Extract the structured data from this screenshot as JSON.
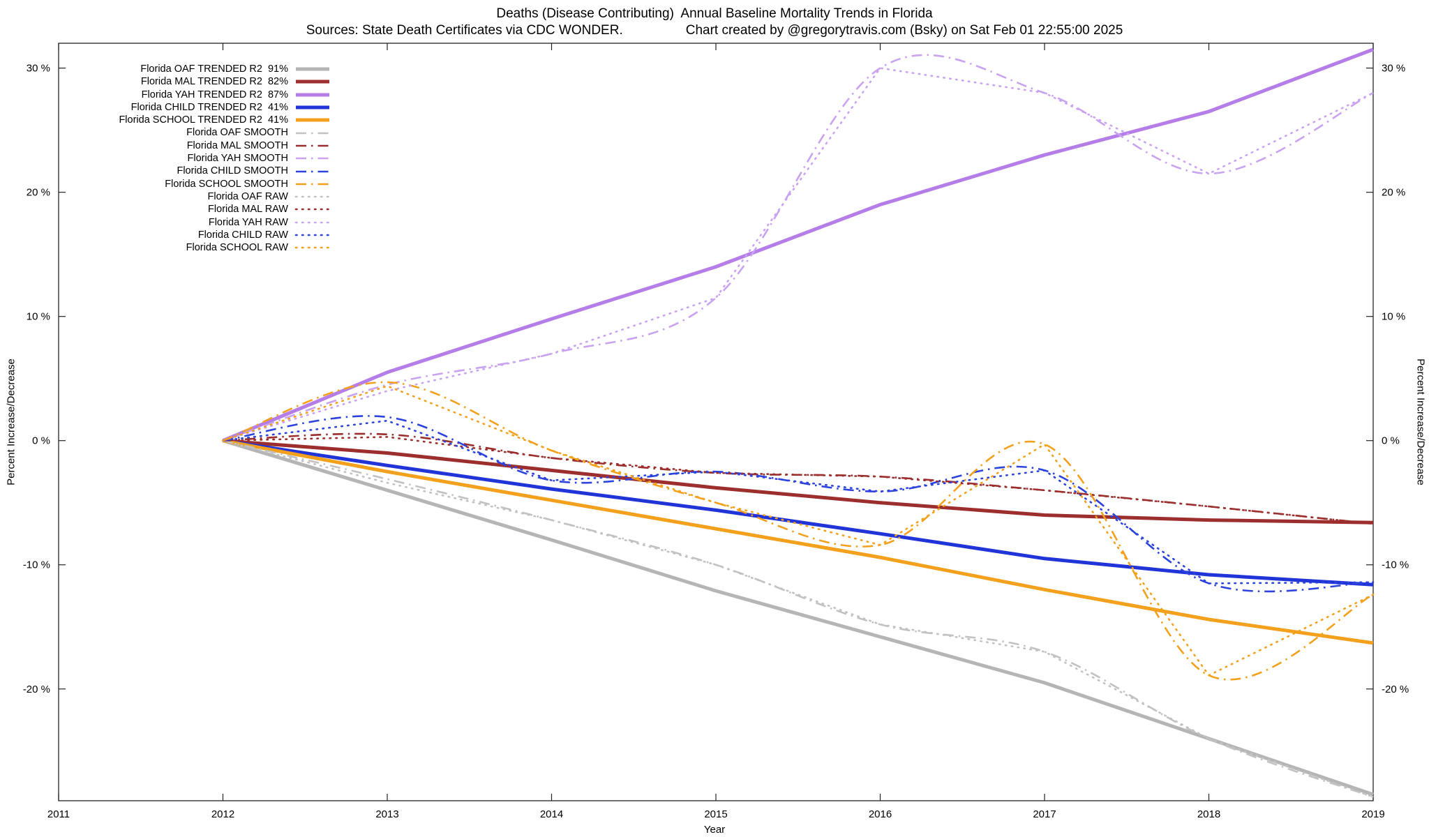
{
  "title": {
    "line1": "Deaths (Disease Contributing)  Annual Baseline Mortality Trends in Florida",
    "sources": "Sources: State Death Certificates via CDC WONDER.",
    "credit": "Chart created by @gregorytravis.com (Bsky) on Sat Feb 01 22:55:00 2025"
  },
  "axes": {
    "x_label": "Year",
    "y_label_left": "Percent Increase/Decrease",
    "y_label_right": "Percent Increase/Decrease",
    "x_ticks": [
      2011,
      2012,
      2013,
      2014,
      2015,
      2016,
      2017,
      2018,
      2019
    ],
    "y_ticks": [
      -20,
      -10,
      0,
      10,
      20,
      30
    ],
    "y_tick_suffix": " %",
    "x_range": [
      2011,
      2019
    ],
    "y_range": [
      -29,
      32
    ],
    "grid": false
  },
  "chart_data": {
    "type": "line",
    "legend_position": "top-left",
    "x": [
      2012,
      2013,
      2014,
      2015,
      2016,
      2017,
      2018,
      2019
    ],
    "series": [
      {
        "name": "Florida OAF TRENDED R2  91%",
        "color": "#b5b5b5",
        "style": "solid",
        "curve": false,
        "values": [
          0,
          -4.0,
          -8.0,
          -12.1,
          -15.8,
          -19.5,
          -24.0,
          -28.5
        ]
      },
      {
        "name": "Florida MAL TRENDED R2  82%",
        "color": "#9c2e2e",
        "style": "solid",
        "curve": false,
        "values": [
          0,
          -1.0,
          -2.4,
          -3.8,
          -5.0,
          -6.0,
          -6.4,
          -6.6
        ]
      },
      {
        "name": "Florida YAH TRENDED R2  87%",
        "color": "#b57de8",
        "style": "solid",
        "curve": false,
        "values": [
          0,
          5.5,
          9.8,
          14.0,
          19.0,
          23.0,
          26.5,
          31.5
        ]
      },
      {
        "name": "Florida CHILD TRENDED R2  41%",
        "color": "#2134d8",
        "style": "solid",
        "curve": false,
        "values": [
          0,
          -2.0,
          -3.9,
          -5.6,
          -7.5,
          -9.5,
          -10.8,
          -11.6
        ]
      },
      {
        "name": "Florida SCHOOL TRENDED R2  41%",
        "color": "#f3a01c",
        "style": "solid",
        "curve": false,
        "values": [
          0,
          -2.5,
          -4.8,
          -7.1,
          -9.4,
          -12.0,
          -14.4,
          -16.3
        ]
      },
      {
        "name": "Florida OAF SMOOTH",
        "color": "#c2c2c2",
        "style": "dashdot",
        "curve": true,
        "values": [
          0,
          -3.1,
          -6.4,
          -10.0,
          -14.8,
          -17.0,
          -24.0,
          -28.7
        ]
      },
      {
        "name": "Florida MAL SMOOTH",
        "color": "#9c2e2e",
        "style": "dashdot",
        "curve": true,
        "values": [
          0,
          0.5,
          -1.4,
          -2.6,
          -2.9,
          -4.0,
          -5.3,
          -6.7
        ]
      },
      {
        "name": "Florida YAH SMOOTH",
        "color": "#c9a3f0",
        "style": "dashdot",
        "curve": true,
        "values": [
          0,
          4.5,
          7.0,
          11.5,
          30.0,
          28.0,
          21.5,
          28.0
        ]
      },
      {
        "name": "Florida CHILD SMOOTH",
        "color": "#2d43dd",
        "style": "dashdot",
        "curve": true,
        "values": [
          0,
          1.9,
          -3.2,
          -2.5,
          -4.1,
          -2.4,
          -11.5,
          -11.4
        ]
      },
      {
        "name": "Florida SCHOOL SMOOTH",
        "color": "#f3a01c",
        "style": "dashdot",
        "curve": true,
        "values": [
          0,
          4.7,
          -0.8,
          -5.0,
          -8.4,
          -0.3,
          -18.9,
          -12.4
        ]
      },
      {
        "name": "Florida OAF RAW",
        "color": "#c2c2c2",
        "style": "dotted",
        "curve": false,
        "values": [
          0,
          -3.4,
          -6.4,
          -10.0,
          -14.8,
          -17.0,
          -24.0,
          -28.7
        ]
      },
      {
        "name": "Florida MAL RAW",
        "color": "#9c2e2e",
        "style": "dotted",
        "curve": false,
        "values": [
          0,
          0.3,
          -1.4,
          -2.6,
          -2.9,
          -4.0,
          -5.3,
          -6.7
        ]
      },
      {
        "name": "Florida YAH RAW",
        "color": "#c9a3f0",
        "style": "dotted",
        "curve": false,
        "values": [
          0,
          4.0,
          7.0,
          11.5,
          30.0,
          28.0,
          21.5,
          28.0
        ]
      },
      {
        "name": "Florida CHILD RAW",
        "color": "#2d43dd",
        "style": "dotted",
        "curve": false,
        "values": [
          0,
          1.6,
          -3.2,
          -2.5,
          -4.1,
          -2.4,
          -11.5,
          -11.4
        ]
      },
      {
        "name": "Florida SCHOOL RAW",
        "color": "#f3a01c",
        "style": "dotted",
        "curve": false,
        "values": [
          0,
          4.4,
          -0.8,
          -5.0,
          -8.4,
          -0.3,
          -18.9,
          -12.4
        ]
      }
    ]
  }
}
